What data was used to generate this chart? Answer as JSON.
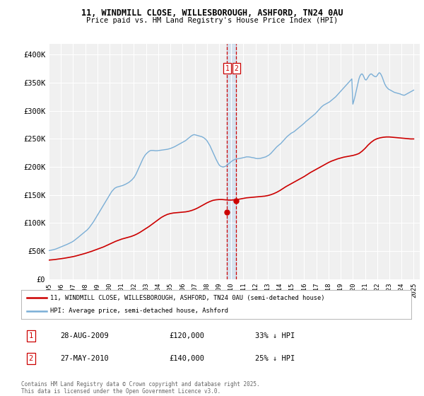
{
  "title1": "11, WINDMILL CLOSE, WILLESBOROUGH, ASHFORD, TN24 0AU",
  "title2": "Price paid vs. HM Land Registry's House Price Index (HPI)",
  "bg_color": "#ffffff",
  "plot_bg_color": "#f0f0f0",
  "grid_color": "#ffffff",
  "hpi_color": "#7aaed6",
  "price_color": "#cc0000",
  "legend_label_red": "11, WINDMILL CLOSE, WILLESBOROUGH, ASHFORD, TN24 0AU (semi-detached house)",
  "legend_label_blue": "HPI: Average price, semi-detached house, Ashford",
  "footnote": "Contains HM Land Registry data © Crown copyright and database right 2025.\nThis data is licensed under the Open Government Licence v3.0.",
  "transactions": [
    {
      "label": "1",
      "date": "28-AUG-2009",
      "price": 120000,
      "pct": "33% ↓ HPI",
      "x": 2009.66
    },
    {
      "label": "2",
      "date": "27-MAY-2010",
      "price": 140000,
      "pct": "25% ↓ HPI",
      "x": 2010.41
    }
  ],
  "hpi_x": [
    1995.0,
    1995.083,
    1995.167,
    1995.25,
    1995.333,
    1995.417,
    1995.5,
    1995.583,
    1995.667,
    1995.75,
    1995.833,
    1995.917,
    1996.0,
    1996.083,
    1996.167,
    1996.25,
    1996.333,
    1996.417,
    1996.5,
    1996.583,
    1996.667,
    1996.75,
    1996.833,
    1996.917,
    1997.0,
    1997.083,
    1997.167,
    1997.25,
    1997.333,
    1997.417,
    1997.5,
    1997.583,
    1997.667,
    1997.75,
    1997.833,
    1997.917,
    1998.0,
    1998.083,
    1998.167,
    1998.25,
    1998.333,
    1998.417,
    1998.5,
    1998.583,
    1998.667,
    1998.75,
    1998.833,
    1998.917,
    1999.0,
    1999.083,
    1999.167,
    1999.25,
    1999.333,
    1999.417,
    1999.5,
    1999.583,
    1999.667,
    1999.75,
    1999.833,
    1999.917,
    2000.0,
    2000.083,
    2000.167,
    2000.25,
    2000.333,
    2000.417,
    2000.5,
    2000.583,
    2000.667,
    2000.75,
    2000.833,
    2000.917,
    2001.0,
    2001.083,
    2001.167,
    2001.25,
    2001.333,
    2001.417,
    2001.5,
    2001.583,
    2001.667,
    2001.75,
    2001.833,
    2001.917,
    2002.0,
    2002.083,
    2002.167,
    2002.25,
    2002.333,
    2002.417,
    2002.5,
    2002.583,
    2002.667,
    2002.75,
    2002.833,
    2002.917,
    2003.0,
    2003.083,
    2003.167,
    2003.25,
    2003.333,
    2003.417,
    2003.5,
    2003.583,
    2003.667,
    2003.75,
    2003.833,
    2003.917,
    2004.0,
    2004.083,
    2004.167,
    2004.25,
    2004.333,
    2004.417,
    2004.5,
    2004.583,
    2004.667,
    2004.75,
    2004.833,
    2004.917,
    2005.0,
    2005.083,
    2005.167,
    2005.25,
    2005.333,
    2005.417,
    2005.5,
    2005.583,
    2005.667,
    2005.75,
    2005.833,
    2005.917,
    2006.0,
    2006.083,
    2006.167,
    2006.25,
    2006.333,
    2006.417,
    2006.5,
    2006.583,
    2006.667,
    2006.75,
    2006.833,
    2006.917,
    2007.0,
    2007.083,
    2007.167,
    2007.25,
    2007.333,
    2007.417,
    2007.5,
    2007.583,
    2007.667,
    2007.75,
    2007.833,
    2007.917,
    2008.0,
    2008.083,
    2008.167,
    2008.25,
    2008.333,
    2008.417,
    2008.5,
    2008.583,
    2008.667,
    2008.75,
    2008.833,
    2008.917,
    2009.0,
    2009.083,
    2009.167,
    2009.25,
    2009.333,
    2009.417,
    2009.5,
    2009.583,
    2009.667,
    2009.75,
    2009.833,
    2009.917,
    2010.0,
    2010.083,
    2010.167,
    2010.25,
    2010.333,
    2010.417,
    2010.5,
    2010.583,
    2010.667,
    2010.75,
    2010.833,
    2010.917,
    2011.0,
    2011.083,
    2011.167,
    2011.25,
    2011.333,
    2011.417,
    2011.5,
    2011.583,
    2011.667,
    2011.75,
    2011.833,
    2011.917,
    2012.0,
    2012.083,
    2012.167,
    2012.25,
    2012.333,
    2012.417,
    2012.5,
    2012.583,
    2012.667,
    2012.75,
    2012.833,
    2012.917,
    2013.0,
    2013.083,
    2013.167,
    2013.25,
    2013.333,
    2013.417,
    2013.5,
    2013.583,
    2013.667,
    2013.75,
    2013.833,
    2013.917,
    2014.0,
    2014.083,
    2014.167,
    2014.25,
    2014.333,
    2014.417,
    2014.5,
    2014.583,
    2014.667,
    2014.75,
    2014.833,
    2014.917,
    2015.0,
    2015.083,
    2015.167,
    2015.25,
    2015.333,
    2015.417,
    2015.5,
    2015.583,
    2015.667,
    2015.75,
    2015.833,
    2015.917,
    2016.0,
    2016.083,
    2016.167,
    2016.25,
    2016.333,
    2016.417,
    2016.5,
    2016.583,
    2016.667,
    2016.75,
    2016.833,
    2016.917,
    2017.0,
    2017.083,
    2017.167,
    2017.25,
    2017.333,
    2017.417,
    2017.5,
    2017.583,
    2017.667,
    2017.75,
    2017.833,
    2017.917,
    2018.0,
    2018.083,
    2018.167,
    2018.25,
    2018.333,
    2018.417,
    2018.5,
    2018.583,
    2018.667,
    2018.75,
    2018.833,
    2018.917,
    2019.0,
    2019.083,
    2019.167,
    2019.25,
    2019.333,
    2019.417,
    2019.5,
    2019.583,
    2019.667,
    2019.75,
    2019.833,
    2019.917,
    2020.0,
    2020.083,
    2020.167,
    2020.25,
    2020.333,
    2020.417,
    2020.5,
    2020.583,
    2020.667,
    2020.75,
    2020.833,
    2020.917,
    2021.0,
    2021.083,
    2021.167,
    2021.25,
    2021.333,
    2021.417,
    2021.5,
    2021.583,
    2021.667,
    2021.75,
    2021.833,
    2021.917,
    2022.0,
    2022.083,
    2022.167,
    2022.25,
    2022.333,
    2022.417,
    2022.5,
    2022.583,
    2022.667,
    2022.75,
    2022.833,
    2022.917,
    2023.0,
    2023.083,
    2023.167,
    2023.25,
    2023.333,
    2023.417,
    2023.5,
    2023.583,
    2023.667,
    2023.75,
    2023.833,
    2023.917,
    2024.0,
    2024.083,
    2024.167,
    2024.25,
    2024.333,
    2024.417,
    2024.5,
    2024.583,
    2024.667,
    2024.75,
    2024.833,
    2024.917,
    2025.0
  ],
  "hpi_y": [
    51000,
    51200,
    51500,
    52000,
    52300,
    52800,
    53200,
    53800,
    54500,
    55200,
    56000,
    56800,
    57500,
    58200,
    59000,
    59800,
    60500,
    61200,
    62000,
    62800,
    63700,
    64600,
    65500,
    66400,
    67500,
    68800,
    70200,
    71600,
    73000,
    74500,
    76000,
    77500,
    79000,
    80500,
    82000,
    83500,
    85000,
    86500,
    88000,
    90000,
    92000,
    94500,
    97000,
    99500,
    102000,
    105000,
    108000,
    111000,
    114000,
    117000,
    120000,
    123000,
    126000,
    129000,
    132000,
    135000,
    138000,
    141000,
    144000,
    147000,
    150000,
    153000,
    156000,
    158000,
    160000,
    162000,
    163000,
    164000,
    164500,
    165000,
    165500,
    166000,
    166500,
    167000,
    167800,
    168500,
    169500,
    170500,
    171500,
    172500,
    174000,
    175500,
    177000,
    179000,
    181000,
    184000,
    187000,
    191000,
    195000,
    199000,
    203000,
    207000,
    211000,
    215000,
    218000,
    221000,
    223000,
    225000,
    226500,
    228000,
    229000,
    229500,
    229500,
    229500,
    229200,
    229000,
    229000,
    229000,
    229200,
    229500,
    229800,
    230000,
    230200,
    230500,
    230800,
    231000,
    231200,
    231500,
    232000,
    232500,
    233000,
    233800,
    234500,
    235200,
    236000,
    237000,
    238000,
    239000,
    240000,
    241000,
    242000,
    243000,
    244000,
    245000,
    246000,
    247000,
    248500,
    250000,
    251500,
    253000,
    254500,
    255800,
    256800,
    257500,
    257500,
    257000,
    256500,
    256000,
    255500,
    255000,
    254500,
    254000,
    253000,
    252000,
    250500,
    249000,
    247000,
    244000,
    241000,
    238000,
    234000,
    230000,
    226000,
    222000,
    218000,
    214000,
    210500,
    207000,
    204000,
    202000,
    201000,
    200500,
    200000,
    200500,
    201000,
    202000,
    203500,
    205000,
    206500,
    208000,
    209500,
    211000,
    212000,
    213000,
    213800,
    214200,
    214500,
    214800,
    215000,
    215500,
    215800,
    216200,
    216500,
    217000,
    217500,
    218000,
    218000,
    218000,
    217800,
    217500,
    217000,
    216800,
    216500,
    216000,
    215500,
    215000,
    215000,
    215000,
    215200,
    215500,
    216000,
    216500,
    217000,
    217500,
    218000,
    219000,
    220000,
    221000,
    222500,
    224000,
    226000,
    228000,
    230000,
    232000,
    234000,
    236000,
    237500,
    239000,
    240500,
    242000,
    244000,
    246000,
    248000,
    250000,
    252000,
    254000,
    255500,
    257000,
    258500,
    260000,
    261000,
    262000,
    263000,
    264500,
    266000,
    267500,
    269000,
    270500,
    272000,
    273500,
    275000,
    276500,
    278000,
    280000,
    281500,
    283000,
    284500,
    286000,
    287500,
    289000,
    290500,
    292000,
    293500,
    295000,
    297000,
    299000,
    301000,
    303000,
    305000,
    307000,
    308500,
    310000,
    311000,
    312000,
    313000,
    314000,
    315000,
    316000,
    317500,
    319000,
    320500,
    322000,
    323500,
    325000,
    327000,
    329000,
    331000,
    333000,
    335000,
    337000,
    339000,
    341000,
    343000,
    345000,
    347000,
    349000,
    351000,
    353000,
    355000,
    357000,
    312000,
    318000,
    325000,
    333000,
    341000,
    349000,
    357000,
    362000,
    365000,
    366000,
    364000,
    360000,
    356000,
    355000,
    357000,
    360000,
    363000,
    365000,
    366000,
    365000,
    363000,
    362000,
    361000,
    361000,
    363000,
    366000,
    368000,
    367000,
    364000,
    360000,
    355000,
    350000,
    346000,
    343000,
    341000,
    339000,
    338000,
    337000,
    336000,
    335000,
    334000,
    333000,
    332500,
    332000,
    331500,
    331000,
    330500,
    330000,
    329000,
    328500,
    328000,
    328000,
    329000,
    330000,
    331000,
    332000,
    333000,
    334000,
    335000,
    336000,
    337000
  ],
  "price_x": [
    1995.0,
    1995.25,
    1995.5,
    1995.75,
    1996.0,
    1996.25,
    1996.5,
    1996.75,
    1997.0,
    1997.25,
    1997.5,
    1997.75,
    1998.0,
    1998.25,
    1998.5,
    1998.75,
    1999.0,
    1999.25,
    1999.5,
    1999.75,
    2000.0,
    2000.25,
    2000.5,
    2000.75,
    2001.0,
    2001.25,
    2001.5,
    2001.75,
    2002.0,
    2002.25,
    2002.5,
    2002.75,
    2003.0,
    2003.25,
    2003.5,
    2003.75,
    2004.0,
    2004.25,
    2004.5,
    2004.75,
    2005.0,
    2005.25,
    2005.5,
    2005.75,
    2006.0,
    2006.25,
    2006.5,
    2006.75,
    2007.0,
    2007.25,
    2007.5,
    2007.75,
    2008.0,
    2008.25,
    2008.5,
    2008.75,
    2009.0,
    2009.25,
    2009.5,
    2009.75,
    2010.0,
    2010.25,
    2010.5,
    2010.75,
    2011.0,
    2011.25,
    2011.5,
    2011.75,
    2012.0,
    2012.25,
    2012.5,
    2012.75,
    2013.0,
    2013.25,
    2013.5,
    2013.75,
    2014.0,
    2014.25,
    2014.5,
    2014.75,
    2015.0,
    2015.25,
    2015.5,
    2015.75,
    2016.0,
    2016.25,
    2016.5,
    2016.75,
    2017.0,
    2017.25,
    2017.5,
    2017.75,
    2018.0,
    2018.25,
    2018.5,
    2018.75,
    2019.0,
    2019.25,
    2019.5,
    2019.75,
    2020.0,
    2020.25,
    2020.5,
    2020.75,
    2021.0,
    2021.25,
    2021.5,
    2021.75,
    2022.0,
    2022.25,
    2022.5,
    2022.75,
    2023.0,
    2023.25,
    2023.5,
    2023.75,
    2024.0,
    2024.25,
    2024.5,
    2024.75,
    2025.0
  ],
  "price_y": [
    34000,
    34500,
    35000,
    35800,
    36500,
    37300,
    38200,
    39200,
    40200,
    41500,
    43000,
    44500,
    46000,
    47800,
    49500,
    51500,
    53500,
    55500,
    57500,
    60000,
    62500,
    65000,
    67500,
    69500,
    71500,
    73000,
    74500,
    76000,
    78000,
    80500,
    83500,
    87000,
    90500,
    94000,
    98000,
    102000,
    106000,
    110000,
    113000,
    115500,
    117000,
    118000,
    118500,
    119000,
    119500,
    120000,
    121000,
    122500,
    124500,
    127000,
    130000,
    133000,
    136000,
    138500,
    140500,
    141500,
    142000,
    142000,
    141500,
    141000,
    141000,
    141500,
    142000,
    143000,
    144000,
    145000,
    145500,
    146000,
    146500,
    147000,
    147500,
    148000,
    149000,
    150500,
    152500,
    155000,
    158000,
    161500,
    165000,
    168000,
    171000,
    174000,
    177000,
    180000,
    183000,
    186500,
    190000,
    193000,
    196000,
    199000,
    202000,
    205000,
    208000,
    210500,
    212500,
    214500,
    216000,
    217500,
    218500,
    219500,
    220500,
    222000,
    224000,
    228000,
    233000,
    239000,
    244000,
    248000,
    250500,
    252000,
    253000,
    253500,
    253500,
    253000,
    252500,
    252000,
    251500,
    251000,
    250500,
    250000,
    250000
  ],
  "ylim": [
    0,
    420000
  ],
  "yticks": [
    0,
    50000,
    100000,
    150000,
    200000,
    250000,
    300000,
    350000,
    400000
  ],
  "xlim": [
    1995,
    2025.5
  ],
  "xticks": [
    1995,
    1996,
    1997,
    1998,
    1999,
    2000,
    2001,
    2002,
    2003,
    2004,
    2005,
    2006,
    2007,
    2008,
    2009,
    2010,
    2011,
    2012,
    2013,
    2014,
    2015,
    2016,
    2017,
    2018,
    2019,
    2020,
    2021,
    2022,
    2023,
    2024,
    2025
  ]
}
